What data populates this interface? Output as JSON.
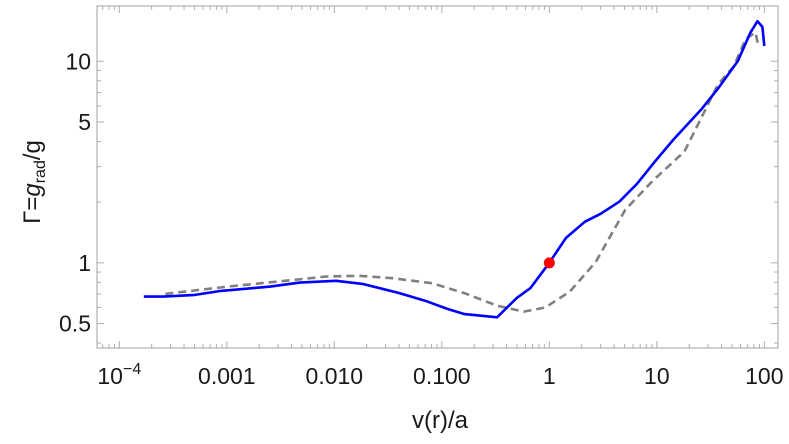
{
  "chart_data": {
    "type": "line",
    "title": "",
    "xlabel": "v(r)/a",
    "ylabel_parts": [
      "Γ=",
      "g",
      "rad",
      "/g"
    ],
    "x_scale": "log",
    "y_scale": "log",
    "xlim": [
      6.2e-05,
      134
    ],
    "ylim": [
      0.378,
      18.8
    ],
    "grid": false,
    "x_ticks": [
      {
        "value": 0.0001,
        "label": "10",
        "sup": "−4"
      },
      {
        "value": 0.001,
        "label": "0.001",
        "sup": ""
      },
      {
        "value": 0.01,
        "label": "0.010",
        "sup": ""
      },
      {
        "value": 0.1,
        "label": "0.100",
        "sup": ""
      },
      {
        "value": 1,
        "label": "1",
        "sup": ""
      },
      {
        "value": 10,
        "label": "10",
        "sup": ""
      },
      {
        "value": 100,
        "label": "100",
        "sup": ""
      }
    ],
    "y_ticks": [
      {
        "value": 0.5,
        "label": "0.5"
      },
      {
        "value": 1,
        "label": "1"
      },
      {
        "value": 5,
        "label": "5"
      },
      {
        "value": 10,
        "label": "10"
      }
    ],
    "series": [
      {
        "style": "solid",
        "color": "#0000ff",
        "x": [
          0.000169,
          0.000259,
          0.000506,
          0.00088,
          0.00253,
          0.00477,
          0.0104,
          0.0183,
          0.0395,
          0.0698,
          0.1135,
          0.1626,
          0.3265,
          0.498,
          0.67,
          1,
          1.43,
          2.14,
          3.0,
          4.48,
          6.56,
          9.59,
          14.3,
          25.9,
          37.8,
          56.5,
          74.4,
          86.3,
          96,
          100
        ],
        "y": [
          0.68,
          0.68,
          0.693,
          0.726,
          0.762,
          0.798,
          0.814,
          0.786,
          0.709,
          0.649,
          0.59,
          0.557,
          0.537,
          0.67,
          0.751,
          1,
          1.33,
          1.6,
          1.75,
          2.01,
          2.47,
          3.18,
          4.09,
          5.77,
          7.42,
          10,
          13.9,
          15.8,
          14.8,
          11.9
        ]
      },
      {
        "style": "dashed",
        "color": "#808080",
        "x": [
          0.000268,
          0.00102,
          0.00294,
          0.00845,
          0.017,
          0.0348,
          0.081,
          0.163,
          0.327,
          0.577,
          0.914,
          1.55,
          2.7,
          5.08,
          9.0,
          18.1,
          37.1,
          52,
          67,
          82.6,
          88.1
        ],
        "y": [
          0.701,
          0.762,
          0.807,
          0.855,
          0.862,
          0.839,
          0.792,
          0.707,
          0.613,
          0.573,
          0.6,
          0.72,
          1.01,
          1.83,
          2.53,
          3.57,
          7.68,
          9.44,
          12.9,
          13.9,
          11.9
        ]
      }
    ],
    "annotations": [
      {
        "type": "point",
        "x": 1,
        "y": 1,
        "color": "#ff0000"
      }
    ]
  }
}
